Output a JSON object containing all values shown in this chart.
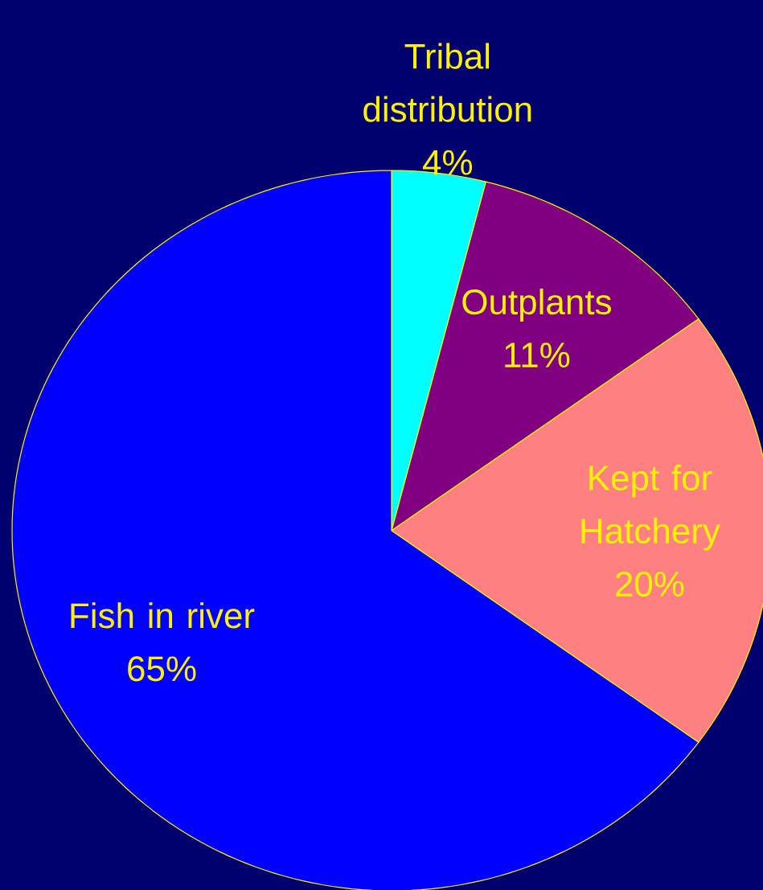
{
  "chart_data": {
    "type": "pie",
    "categories": [
      "Tribal distribution",
      "Outplants",
      "Kept for Hatchery",
      "Fish in river"
    ],
    "values": [
      4,
      11,
      20,
      65
    ],
    "colors": [
      "#00ffff",
      "#800080",
      "#ff8080",
      "#0000ff"
    ],
    "value_labels": [
      "4%",
      "11%",
      "20%",
      "65%"
    ]
  }
}
